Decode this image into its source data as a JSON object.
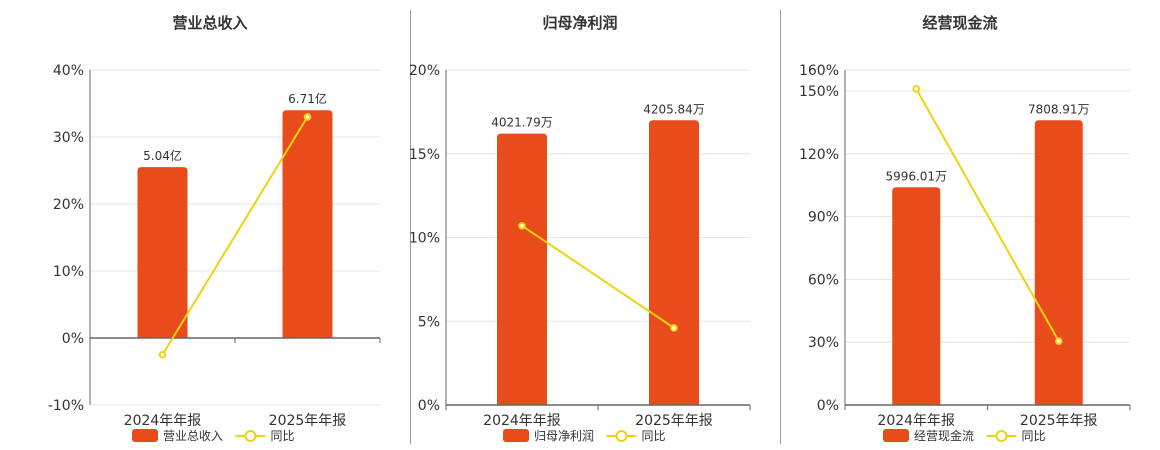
{
  "colors": {
    "bar": "#e84c1a",
    "line": "#f2d20f",
    "axis": "#666666",
    "grid": "#e6e6e6",
    "text": "#333333"
  },
  "chart_data": [
    {
      "type": "bar",
      "title": "营业总收入",
      "categories": [
        "2024年年报",
        "2025年年报"
      ],
      "ylim": [
        -10,
        40
      ],
      "yticks": [
        -10,
        0,
        10,
        20,
        30,
        40
      ],
      "ytick_labels": [
        "-10%",
        "0%",
        "10%",
        "20%",
        "30%",
        "40%"
      ],
      "series": [
        {
          "name": "营业总收入",
          "kind": "bar",
          "values": [
            25.5,
            34.0
          ],
          "labels": [
            "5.04亿",
            "6.71亿"
          ]
        },
        {
          "name": "同比",
          "kind": "line",
          "values": [
            -2.5,
            33.0
          ]
        }
      ],
      "legend": "bottom"
    },
    {
      "type": "bar",
      "title": "归母净利润",
      "categories": [
        "2024年年报",
        "2025年年报"
      ],
      "ylim": [
        0,
        20
      ],
      "yticks": [
        0,
        5,
        10,
        15,
        20
      ],
      "ytick_labels": [
        "0%",
        "5%",
        "10%",
        "15%",
        "20%"
      ],
      "series": [
        {
          "name": "归母净利润",
          "kind": "bar",
          "values": [
            16.2,
            17.0
          ],
          "labels": [
            "4021.79万",
            "4205.84万"
          ]
        },
        {
          "name": "同比",
          "kind": "line",
          "values": [
            10.7,
            4.6
          ]
        }
      ],
      "legend": "bottom"
    },
    {
      "type": "bar",
      "title": "经营现金流",
      "categories": [
        "2024年年报",
        "2025年年报"
      ],
      "ylim": [
        0,
        160
      ],
      "yticks": [
        0,
        30,
        60,
        90,
        120,
        150,
        160
      ],
      "ytick_labels": [
        "0%",
        "30%",
        "60%",
        "90%",
        "120%",
        "150%",
        "160%"
      ],
      "series": [
        {
          "name": "经营现金流",
          "kind": "bar",
          "values": [
            104,
            136
          ],
          "labels": [
            "5996.01万",
            "7808.91万"
          ]
        },
        {
          "name": "同比",
          "kind": "line",
          "values": [
            151,
            30.5
          ]
        }
      ],
      "legend": "bottom"
    }
  ]
}
